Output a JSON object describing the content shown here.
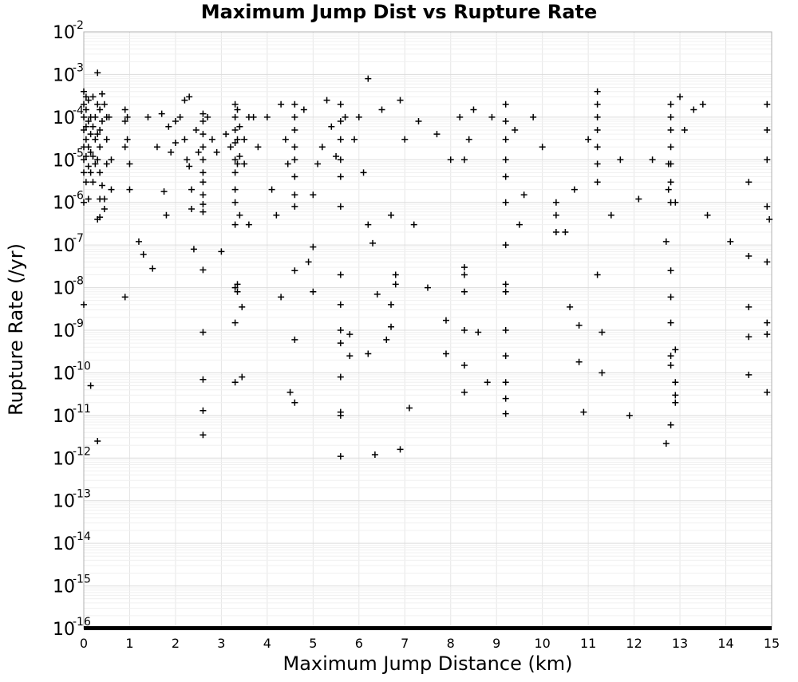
{
  "chart_data": {
    "type": "scatter",
    "title": "Maximum Jump Dist vs Rupture Rate",
    "xlabel": "Maximum Jump Distance (km)",
    "ylabel": "Rupture Rate (/yr)",
    "xlim": [
      0,
      15
    ],
    "ylim": [
      1e-16,
      0.01
    ],
    "yscale": "log",
    "grid": true,
    "legend": "none",
    "marker": "+",
    "marker_color": "#000000",
    "x_ticks": [
      "0",
      "1",
      "2",
      "3",
      "4",
      "5",
      "6",
      "7",
      "8",
      "9",
      "10",
      "11",
      "12",
      "13",
      "14",
      "15"
    ],
    "y_ticks": [
      {
        "base": "10",
        "exp": "-2"
      },
      {
        "base": "10",
        "exp": "-3"
      },
      {
        "base": "10",
        "exp": "-4"
      },
      {
        "base": "10",
        "exp": "-5"
      },
      {
        "base": "10",
        "exp": "-6"
      },
      {
        "base": "10",
        "exp": "-7"
      },
      {
        "base": "10",
        "exp": "-8"
      },
      {
        "base": "10",
        "exp": "-9"
      },
      {
        "base": "10",
        "exp": "-10"
      },
      {
        "base": "10",
        "exp": "-11"
      },
      {
        "base": "10",
        "exp": "-12"
      },
      {
        "base": "10",
        "exp": "-13"
      },
      {
        "base": "10",
        "exp": "-14"
      },
      {
        "base": "10",
        "exp": "-15"
      },
      {
        "base": "10",
        "exp": "-16"
      }
    ],
    "points": [
      [
        0.0,
        0.0004
      ],
      [
        0.0,
        0.0002
      ],
      [
        0.0,
        0.0001
      ],
      [
        0.0,
        5e-05
      ],
      [
        0.0,
        2e-05
      ],
      [
        0.0,
        1e-05
      ],
      [
        0.0,
        5e-06
      ],
      [
        0.0,
        1e-06
      ],
      [
        0.0,
        4e-09
      ],
      [
        0.05,
        0.0003
      ],
      [
        0.05,
        0.00015
      ],
      [
        0.05,
        6e-05
      ],
      [
        0.05,
        3e-05
      ],
      [
        0.05,
        1.2e-05
      ],
      [
        0.05,
        3e-06
      ],
      [
        0.1,
        0.00025
      ],
      [
        0.1,
        8e-05
      ],
      [
        0.1,
        2e-05
      ],
      [
        0.1,
        7e-06
      ],
      [
        0.1,
        1.2e-06
      ],
      [
        0.15,
        0.0001
      ],
      [
        0.15,
        4e-05
      ],
      [
        0.15,
        1.5e-05
      ],
      [
        0.15,
        5e-06
      ],
      [
        0.15,
        5e-11
      ],
      [
        0.2,
        0.0003
      ],
      [
        0.2,
        6e-05
      ],
      [
        0.2,
        1.2e-05
      ],
      [
        0.2,
        3e-06
      ],
      [
        0.25,
        0.0001
      ],
      [
        0.25,
        3e-05
      ],
      [
        0.25,
        8e-06
      ],
      [
        0.3,
        0.0011
      ],
      [
        0.3,
        0.0002
      ],
      [
        0.3,
        4e-05
      ],
      [
        0.3,
        1e-05
      ],
      [
        0.3,
        4e-07
      ],
      [
        0.3,
        2.5e-12
      ],
      [
        0.35,
        0.00015
      ],
      [
        0.35,
        5e-05
      ],
      [
        0.35,
        2e-05
      ],
      [
        0.35,
        5e-06
      ],
      [
        0.35,
        1.2e-06
      ],
      [
        0.35,
        4.5e-07
      ],
      [
        0.4,
        0.00035
      ],
      [
        0.4,
        8e-05
      ],
      [
        0.4,
        2.5e-06
      ],
      [
        0.45,
        0.0002
      ],
      [
        0.45,
        1.2e-06
      ],
      [
        0.45,
        7e-07
      ],
      [
        0.5,
        0.0001
      ],
      [
        0.5,
        3e-05
      ],
      [
        0.5,
        8e-06
      ],
      [
        0.55,
        0.0001
      ],
      [
        0.6,
        2e-06
      ],
      [
        0.6,
        1e-05
      ],
      [
        0.9,
        0.00015
      ],
      [
        0.9,
        8e-05
      ],
      [
        0.9,
        2e-05
      ],
      [
        0.9,
        6e-09
      ],
      [
        0.95,
        0.0001
      ],
      [
        0.95,
        3e-05
      ],
      [
        1.0,
        2e-06
      ],
      [
        1.0,
        8e-06
      ],
      [
        1.2,
        1.2e-07
      ],
      [
        1.3,
        6e-08
      ],
      [
        1.4,
        0.0001
      ],
      [
        1.5,
        2.8e-08
      ],
      [
        1.6,
        2e-05
      ],
      [
        1.7,
        0.00012
      ],
      [
        1.75,
        1.8e-06
      ],
      [
        1.8,
        5e-07
      ],
      [
        1.85,
        6e-05
      ],
      [
        1.9,
        1.5e-05
      ],
      [
        2.0,
        8e-05
      ],
      [
        2.0,
        2.5e-05
      ],
      [
        2.1,
        0.0001
      ],
      [
        2.2,
        0.00025
      ],
      [
        2.2,
        3e-05
      ],
      [
        2.25,
        1e-05
      ],
      [
        2.3,
        0.0003
      ],
      [
        2.3,
        7e-06
      ],
      [
        2.35,
        2e-06
      ],
      [
        2.35,
        7e-07
      ],
      [
        2.4,
        8e-08
      ],
      [
        2.45,
        5e-05
      ],
      [
        2.5,
        1.5e-05
      ],
      [
        2.6,
        0.00012
      ],
      [
        2.6,
        8e-05
      ],
      [
        2.6,
        4e-05
      ],
      [
        2.6,
        2e-05
      ],
      [
        2.6,
        1e-05
      ],
      [
        2.6,
        5e-06
      ],
      [
        2.6,
        3e-06
      ],
      [
        2.6,
        1.5e-06
      ],
      [
        2.6,
        9e-07
      ],
      [
        2.6,
        6e-07
      ],
      [
        2.6,
        2.6e-08
      ],
      [
        2.6,
        9e-10
      ],
      [
        2.6,
        7e-11
      ],
      [
        2.6,
        1.3e-11
      ],
      [
        2.6,
        3.5e-12
      ],
      [
        2.7,
        0.0001
      ],
      [
        2.8,
        3e-05
      ],
      [
        2.9,
        1.5e-05
      ],
      [
        3.0,
        7e-08
      ],
      [
        3.1,
        4e-05
      ],
      [
        3.2,
        2e-05
      ],
      [
        3.3,
        0.0002
      ],
      [
        3.3,
        0.0001
      ],
      [
        3.3,
        5e-05
      ],
      [
        3.3,
        2.5e-05
      ],
      [
        3.3,
        1e-05
      ],
      [
        3.3,
        5e-06
      ],
      [
        3.3,
        2e-06
      ],
      [
        3.3,
        1e-06
      ],
      [
        3.3,
        3e-07
      ],
      [
        3.3,
        1e-08
      ],
      [
        3.3,
        1.5e-09
      ],
      [
        3.3,
        6e-11
      ],
      [
        3.35,
        0.00015
      ],
      [
        3.35,
        3e-05
      ],
      [
        3.35,
        8e-06
      ],
      [
        3.35,
        1.2e-08
      ],
      [
        3.35,
        8e-09
      ],
      [
        3.4,
        6e-05
      ],
      [
        3.4,
        1.2e-05
      ],
      [
        3.4,
        5e-07
      ],
      [
        3.45,
        3.5e-09
      ],
      [
        3.45,
        8e-11
      ],
      [
        3.5,
        3e-05
      ],
      [
        3.5,
        8e-06
      ],
      [
        3.6,
        0.0001
      ],
      [
        3.6,
        3e-07
      ],
      [
        3.7,
        0.0001
      ],
      [
        3.8,
        2e-05
      ],
      [
        4.0,
        0.0001
      ],
      [
        4.1,
        2e-06
      ],
      [
        4.2,
        5e-07
      ],
      [
        4.3,
        0.0002
      ],
      [
        4.3,
        6e-09
      ],
      [
        4.4,
        3e-05
      ],
      [
        4.45,
        8e-06
      ],
      [
        4.5,
        3.5e-11
      ],
      [
        4.6,
        0.0002
      ],
      [
        4.6,
        0.0001
      ],
      [
        4.6,
        5e-05
      ],
      [
        4.6,
        2e-05
      ],
      [
        4.6,
        1e-05
      ],
      [
        4.6,
        4e-06
      ],
      [
        4.6,
        1.5e-06
      ],
      [
        4.6,
        8e-07
      ],
      [
        4.6,
        2.5e-08
      ],
      [
        4.6,
        6e-10
      ],
      [
        4.6,
        2e-11
      ],
      [
        4.8,
        0.00015
      ],
      [
        4.9,
        4e-08
      ],
      [
        5.0,
        9e-08
      ],
      [
        5.0,
        8e-09
      ],
      [
        5.0,
        1.5e-06
      ],
      [
        5.1,
        8e-06
      ],
      [
        5.2,
        2e-05
      ],
      [
        5.3,
        0.00025
      ],
      [
        5.4,
        6e-05
      ],
      [
        5.5,
        1.2e-05
      ],
      [
        5.6,
        0.0002
      ],
      [
        5.6,
        8e-05
      ],
      [
        5.6,
        3e-05
      ],
      [
        5.6,
        1e-05
      ],
      [
        5.6,
        4e-06
      ],
      [
        5.6,
        8e-07
      ],
      [
        5.6,
        2e-08
      ],
      [
        5.6,
        4e-09
      ],
      [
        5.6,
        1e-09
      ],
      [
        5.6,
        5e-10
      ],
      [
        5.6,
        8e-11
      ],
      [
        5.6,
        1.2e-11
      ],
      [
        5.6,
        1e-11
      ],
      [
        5.6,
        1.1e-12
      ],
      [
        5.7,
        0.0001
      ],
      [
        5.8,
        2.5e-10
      ],
      [
        5.8,
        8e-10
      ],
      [
        5.9,
        3e-05
      ],
      [
        6.0,
        0.0001
      ],
      [
        6.1,
        5e-06
      ],
      [
        6.2,
        0.0008
      ],
      [
        6.2,
        3e-07
      ],
      [
        6.2,
        2.8e-10
      ],
      [
        6.3,
        1.1e-07
      ],
      [
        6.35,
        1.2e-12
      ],
      [
        6.4,
        7e-09
      ],
      [
        6.5,
        0.00015
      ],
      [
        6.6,
        6e-10
      ],
      [
        6.7,
        1.2e-09
      ],
      [
        6.7,
        4e-09
      ],
      [
        6.7,
        5e-07
      ],
      [
        6.8,
        2e-08
      ],
      [
        6.8,
        1.2e-08
      ],
      [
        6.9,
        0.00025
      ],
      [
        6.9,
        1.6e-12
      ],
      [
        7.0,
        3e-05
      ],
      [
        7.1,
        1.5e-11
      ],
      [
        7.2,
        3e-07
      ],
      [
        7.3,
        8e-05
      ],
      [
        7.5,
        1e-08
      ],
      [
        7.7,
        4e-05
      ],
      [
        7.9,
        1.7e-09
      ],
      [
        7.9,
        2.8e-10
      ],
      [
        8.0,
        1e-05
      ],
      [
        8.2,
        0.0001
      ],
      [
        8.3,
        3e-08
      ],
      [
        8.3,
        2e-08
      ],
      [
        8.3,
        8e-09
      ],
      [
        8.3,
        1e-09
      ],
      [
        8.3,
        1.5e-10
      ],
      [
        8.3,
        3.5e-11
      ],
      [
        8.3,
        1e-05
      ],
      [
        8.4,
        3e-05
      ],
      [
        8.5,
        0.00015
      ],
      [
        8.6,
        9e-10
      ],
      [
        8.8,
        6e-11
      ],
      [
        8.9,
        0.0001
      ],
      [
        9.2,
        0.0002
      ],
      [
        9.2,
        8e-05
      ],
      [
        9.2,
        3e-05
      ],
      [
        9.2,
        1e-05
      ],
      [
        9.2,
        4e-06
      ],
      [
        9.2,
        1e-06
      ],
      [
        9.2,
        1e-07
      ],
      [
        9.2,
        1.2e-08
      ],
      [
        9.2,
        8e-09
      ],
      [
        9.2,
        1e-09
      ],
      [
        9.2,
        2.5e-10
      ],
      [
        9.2,
        6e-11
      ],
      [
        9.2,
        2.5e-11
      ],
      [
        9.2,
        1.1e-11
      ],
      [
        9.4,
        5e-05
      ],
      [
        9.5,
        3e-07
      ],
      [
        9.6,
        1.5e-06
      ],
      [
        9.8,
        0.0001
      ],
      [
        10.0,
        2e-05
      ],
      [
        10.3,
        2e-07
      ],
      [
        10.3,
        5e-07
      ],
      [
        10.3,
        1e-06
      ],
      [
        10.5,
        2e-07
      ],
      [
        10.6,
        3.5e-09
      ],
      [
        10.7,
        2e-06
      ],
      [
        10.8,
        1.3e-09
      ],
      [
        10.8,
        1.8e-10
      ],
      [
        10.9,
        1.2e-11
      ],
      [
        11.0,
        3e-05
      ],
      [
        11.2,
        0.0004
      ],
      [
        11.2,
        0.0002
      ],
      [
        11.2,
        0.0001
      ],
      [
        11.2,
        5e-05
      ],
      [
        11.2,
        2e-05
      ],
      [
        11.2,
        8e-06
      ],
      [
        11.2,
        3e-06
      ],
      [
        11.2,
        2e-08
      ],
      [
        11.3,
        9e-10
      ],
      [
        11.3,
        1e-10
      ],
      [
        11.5,
        5e-07
      ],
      [
        11.7,
        1e-05
      ],
      [
        11.9,
        1e-11
      ],
      [
        12.1,
        1.2e-06
      ],
      [
        12.4,
        1e-05
      ],
      [
        12.7,
        1.2e-07
      ],
      [
        12.7,
        2.2e-12
      ],
      [
        12.75,
        8e-06
      ],
      [
        12.75,
        2e-06
      ],
      [
        12.8,
        0.0002
      ],
      [
        12.8,
        0.0001
      ],
      [
        12.8,
        5e-05
      ],
      [
        12.8,
        2e-05
      ],
      [
        12.8,
        8e-06
      ],
      [
        12.8,
        3e-06
      ],
      [
        12.8,
        1e-06
      ],
      [
        12.8,
        2.5e-08
      ],
      [
        12.8,
        6e-09
      ],
      [
        12.8,
        1.5e-09
      ],
      [
        12.8,
        2.5e-10
      ],
      [
        12.8,
        1.5e-10
      ],
      [
        12.8,
        6e-12
      ],
      [
        12.9,
        3.5e-10
      ],
      [
        12.9,
        6e-11
      ],
      [
        12.9,
        3e-11
      ],
      [
        12.9,
        2e-11
      ],
      [
        12.9,
        1e-06
      ],
      [
        13.0,
        0.0003
      ],
      [
        13.1,
        5e-05
      ],
      [
        13.3,
        0.00015
      ],
      [
        13.5,
        0.0002
      ],
      [
        13.6,
        5e-07
      ],
      [
        14.1,
        1.2e-07
      ],
      [
        14.5,
        5.5e-08
      ],
      [
        14.5,
        3.5e-09
      ],
      [
        14.5,
        7e-10
      ],
      [
        14.5,
        9e-11
      ],
      [
        14.5,
        3e-06
      ],
      [
        14.9,
        0.0002
      ],
      [
        14.9,
        5e-05
      ],
      [
        14.9,
        1e-05
      ],
      [
        14.9,
        4e-08
      ],
      [
        14.9,
        1.5e-09
      ],
      [
        14.9,
        8e-10
      ],
      [
        14.9,
        3.5e-11
      ],
      [
        14.9,
        8e-07
      ],
      [
        14.95,
        4e-07
      ]
    ]
  }
}
